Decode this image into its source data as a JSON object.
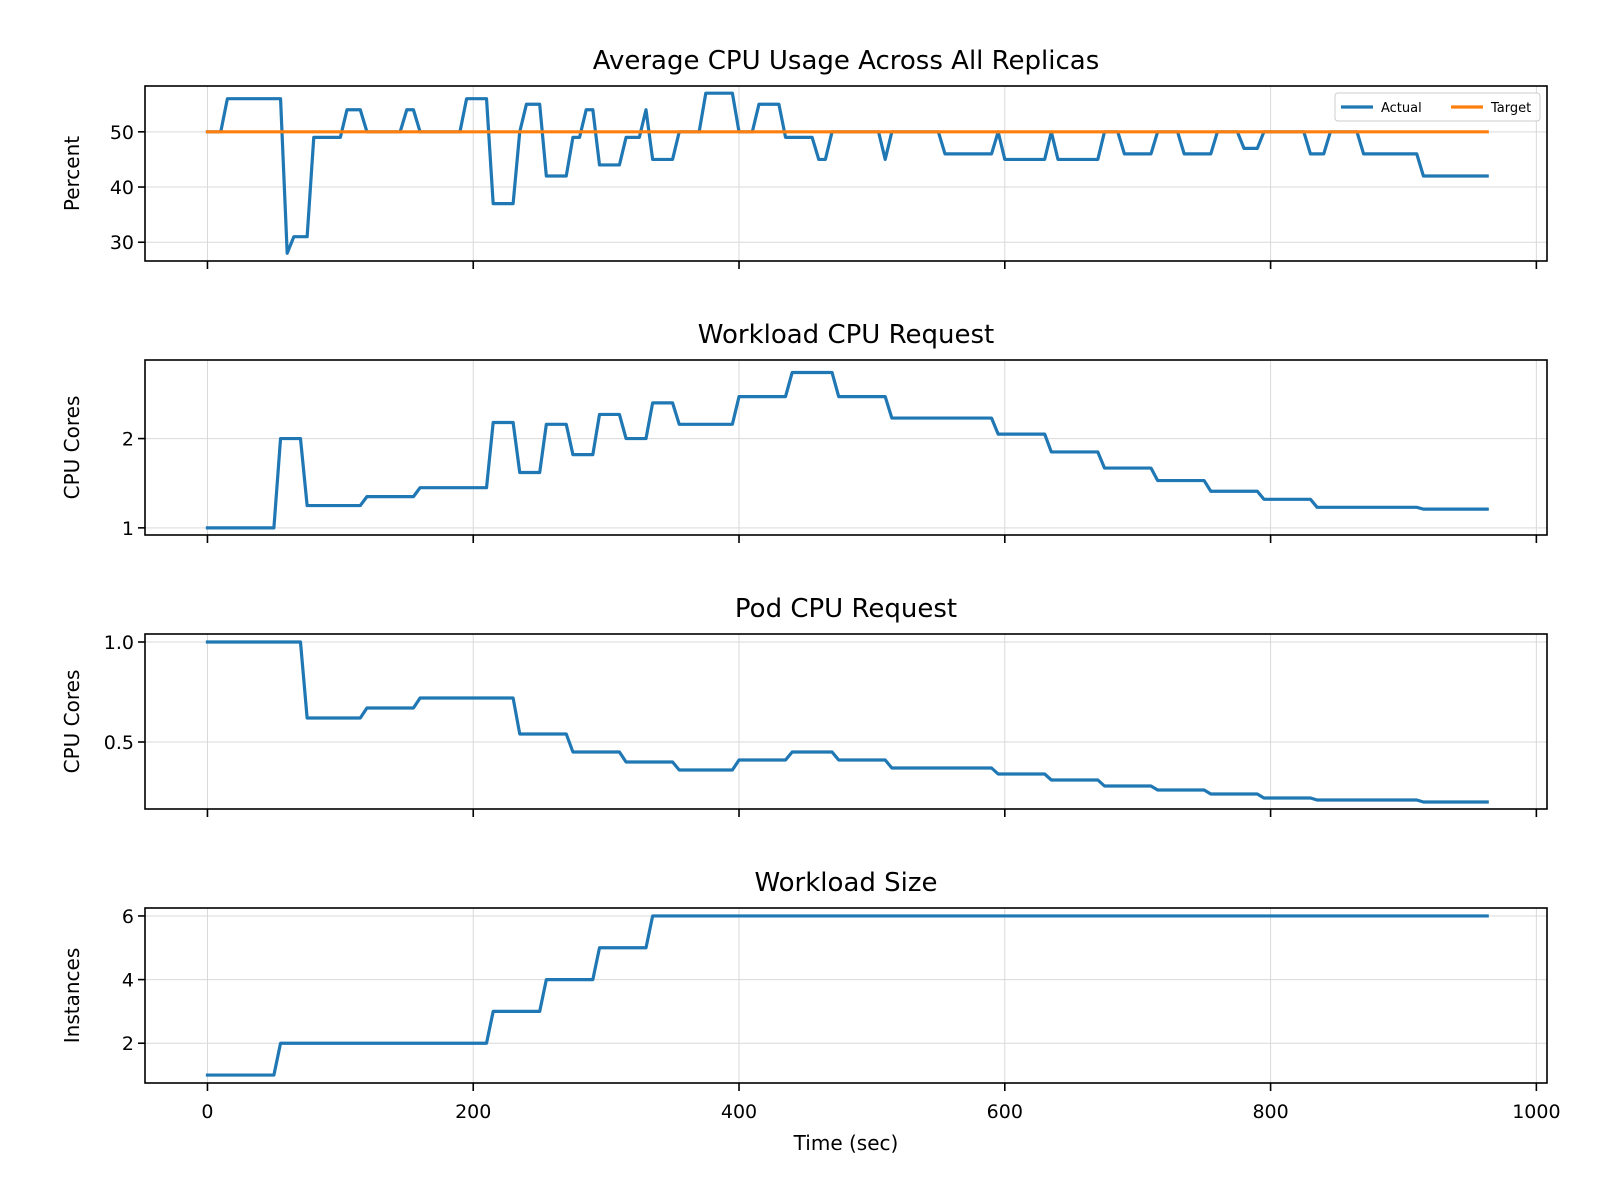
{
  "chart_data": [
    {
      "type": "line",
      "title": "Average CPU Usage Across All Replicas",
      "xlabel": "",
      "ylabel": "Percent",
      "xlim": [
        -47,
        1008
      ],
      "ylim": [
        26.6,
        58.3
      ],
      "yticks": [
        30,
        40,
        50
      ],
      "xticks": [
        0,
        200,
        400,
        600,
        800,
        1000
      ],
      "show_xtick_labels": false,
      "grid": true,
      "legend": "top-right",
      "series": [
        {
          "name": "Actual",
          "color": "#1f77b4",
          "points": [
            [
              0,
              50
            ],
            [
              10,
              50
            ],
            [
              15,
              56
            ],
            [
              50,
              56
            ],
            [
              55,
              56
            ],
            [
              60,
              28
            ],
            [
              65,
              31
            ],
            [
              75,
              31
            ],
            [
              80,
              49
            ],
            [
              100,
              49
            ],
            [
              105,
              54
            ],
            [
              115,
              54
            ],
            [
              120,
              50
            ],
            [
              145,
              50
            ],
            [
              150,
              54
            ],
            [
              155,
              54
            ],
            [
              160,
              50
            ],
            [
              190,
              50
            ],
            [
              195,
              56
            ],
            [
              210,
              56
            ],
            [
              215,
              37
            ],
            [
              230,
              37
            ],
            [
              235,
              50
            ],
            [
              240,
              55
            ],
            [
              250,
              55
            ],
            [
              255,
              42
            ],
            [
              270,
              42
            ],
            [
              275,
              49
            ],
            [
              280,
              49
            ],
            [
              285,
              54
            ],
            [
              290,
              54
            ],
            [
              295,
              44
            ],
            [
              310,
              44
            ],
            [
              315,
              49
            ],
            [
              325,
              49
            ],
            [
              330,
              54
            ],
            [
              335,
              45
            ],
            [
              350,
              45
            ],
            [
              355,
              50
            ],
            [
              370,
              50
            ],
            [
              375,
              57
            ],
            [
              395,
              57
            ],
            [
              400,
              50
            ],
            [
              410,
              50
            ],
            [
              415,
              55
            ],
            [
              430,
              55
            ],
            [
              435,
              49
            ],
            [
              455,
              49
            ],
            [
              460,
              45
            ],
            [
              465,
              45
            ],
            [
              470,
              50
            ],
            [
              505,
              50
            ],
            [
              510,
              45
            ],
            [
              515,
              50
            ],
            [
              550,
              50
            ],
            [
              555,
              46
            ],
            [
              590,
              46
            ],
            [
              595,
              50
            ],
            [
              600,
              45
            ],
            [
              630,
              45
            ],
            [
              635,
              50
            ],
            [
              640,
              45
            ],
            [
              670,
              45
            ],
            [
              675,
              50
            ],
            [
              685,
              50
            ],
            [
              690,
              46
            ],
            [
              710,
              46
            ],
            [
              715,
              50
            ],
            [
              730,
              50
            ],
            [
              735,
              46
            ],
            [
              755,
              46
            ],
            [
              760,
              50
            ],
            [
              775,
              50
            ],
            [
              780,
              47
            ],
            [
              790,
              47
            ],
            [
              795,
              50
            ],
            [
              825,
              50
            ],
            [
              830,
              46
            ],
            [
              840,
              46
            ],
            [
              845,
              50
            ],
            [
              865,
              50
            ],
            [
              870,
              46
            ],
            [
              910,
              46
            ],
            [
              915,
              42
            ],
            [
              963,
              42
            ]
          ]
        },
        {
          "name": "Target",
          "color": "#ff7f0e",
          "points": [
            [
              0,
              50
            ],
            [
              963,
              50
            ]
          ]
        }
      ]
    },
    {
      "type": "line",
      "title": "Workload CPU Request",
      "xlabel": "",
      "ylabel": "CPU Cores",
      "xlim": [
        -47,
        1008
      ],
      "ylim": [
        0.92,
        2.88
      ],
      "yticks": [
        1,
        2
      ],
      "xticks": [
        0,
        200,
        400,
        600,
        800,
        1000
      ],
      "show_xtick_labels": false,
      "grid": true,
      "series": [
        {
          "color": "#1f77b4",
          "points": [
            [
              0,
              1
            ],
            [
              50,
              1
            ],
            [
              55,
              2
            ],
            [
              70,
              2
            ],
            [
              75,
              1.25
            ],
            [
              115,
              1.25
            ],
            [
              120,
              1.35
            ],
            [
              155,
              1.35
            ],
            [
              160,
              1.45
            ],
            [
              210,
              1.45
            ],
            [
              215,
              2.18
            ],
            [
              230,
              2.18
            ],
            [
              235,
              1.62
            ],
            [
              250,
              1.62
            ],
            [
              255,
              2.16
            ],
            [
              270,
              2.16
            ],
            [
              275,
              1.82
            ],
            [
              290,
              1.82
            ],
            [
              295,
              2.27
            ],
            [
              310,
              2.27
            ],
            [
              315,
              2
            ],
            [
              330,
              2
            ],
            [
              335,
              2.4
            ],
            [
              350,
              2.4
            ],
            [
              355,
              2.16
            ],
            [
              395,
              2.16
            ],
            [
              400,
              2.47
            ],
            [
              435,
              2.47
            ],
            [
              440,
              2.74
            ],
            [
              470,
              2.74
            ],
            [
              475,
              2.47
            ],
            [
              510,
              2.47
            ],
            [
              515,
              2.23
            ],
            [
              590,
              2.23
            ],
            [
              595,
              2.05
            ],
            [
              630,
              2.05
            ],
            [
              635,
              1.85
            ],
            [
              670,
              1.85
            ],
            [
              675,
              1.67
            ],
            [
              710,
              1.67
            ],
            [
              715,
              1.53
            ],
            [
              750,
              1.53
            ],
            [
              755,
              1.41
            ],
            [
              790,
              1.41
            ],
            [
              795,
              1.32
            ],
            [
              830,
              1.32
            ],
            [
              835,
              1.23
            ],
            [
              910,
              1.23
            ],
            [
              915,
              1.21
            ],
            [
              963,
              1.21
            ]
          ]
        }
      ]
    },
    {
      "type": "line",
      "title": "Pod CPU Request",
      "xlabel": "",
      "ylabel": "CPU Cores",
      "xlim": [
        -47,
        1008
      ],
      "ylim": [
        0.165,
        1.04
      ],
      "yticks": [
        0.5,
        1.0
      ],
      "ytick_labels": [
        "0.5",
        "1.0"
      ],
      "xticks": [
        0,
        200,
        400,
        600,
        800,
        1000
      ],
      "show_xtick_labels": false,
      "grid": true,
      "series": [
        {
          "color": "#1f77b4",
          "points": [
            [
              0,
              1
            ],
            [
              70,
              1
            ],
            [
              75,
              0.62
            ],
            [
              115,
              0.62
            ],
            [
              120,
              0.67
            ],
            [
              155,
              0.67
            ],
            [
              160,
              0.72
            ],
            [
              230,
              0.72
            ],
            [
              235,
              0.54
            ],
            [
              270,
              0.54
            ],
            [
              275,
              0.45
            ],
            [
              310,
              0.45
            ],
            [
              315,
              0.4
            ],
            [
              350,
              0.4
            ],
            [
              355,
              0.36
            ],
            [
              395,
              0.36
            ],
            [
              400,
              0.41
            ],
            [
              435,
              0.41
            ],
            [
              440,
              0.45
            ],
            [
              470,
              0.45
            ],
            [
              475,
              0.41
            ],
            [
              510,
              0.41
            ],
            [
              515,
              0.37
            ],
            [
              590,
              0.37
            ],
            [
              595,
              0.34
            ],
            [
              630,
              0.34
            ],
            [
              635,
              0.31
            ],
            [
              670,
              0.31
            ],
            [
              675,
              0.28
            ],
            [
              710,
              0.28
            ],
            [
              715,
              0.26
            ],
            [
              750,
              0.26
            ],
            [
              755,
              0.24
            ],
            [
              790,
              0.24
            ],
            [
              795,
              0.22
            ],
            [
              830,
              0.22
            ],
            [
              835,
              0.21
            ],
            [
              910,
              0.21
            ],
            [
              915,
              0.2
            ],
            [
              963,
              0.2
            ]
          ]
        }
      ]
    },
    {
      "type": "line",
      "title": "Workload Size",
      "xlabel": "Time (sec)",
      "ylabel": "Instances",
      "xlim": [
        -47,
        1008
      ],
      "ylim": [
        0.75,
        6.25
      ],
      "yticks": [
        2,
        4,
        6
      ],
      "xticks": [
        0,
        200,
        400,
        600,
        800,
        1000
      ],
      "show_xtick_labels": true,
      "grid": true,
      "series": [
        {
          "color": "#1f77b4",
          "points": [
            [
              0,
              1
            ],
            [
              50,
              1
            ],
            [
              55,
              2
            ],
            [
              210,
              2
            ],
            [
              215,
              3
            ],
            [
              250,
              3
            ],
            [
              255,
              4
            ],
            [
              290,
              4
            ],
            [
              295,
              5
            ],
            [
              330,
              5
            ],
            [
              335,
              6
            ],
            [
              963,
              6
            ]
          ]
        }
      ]
    }
  ]
}
